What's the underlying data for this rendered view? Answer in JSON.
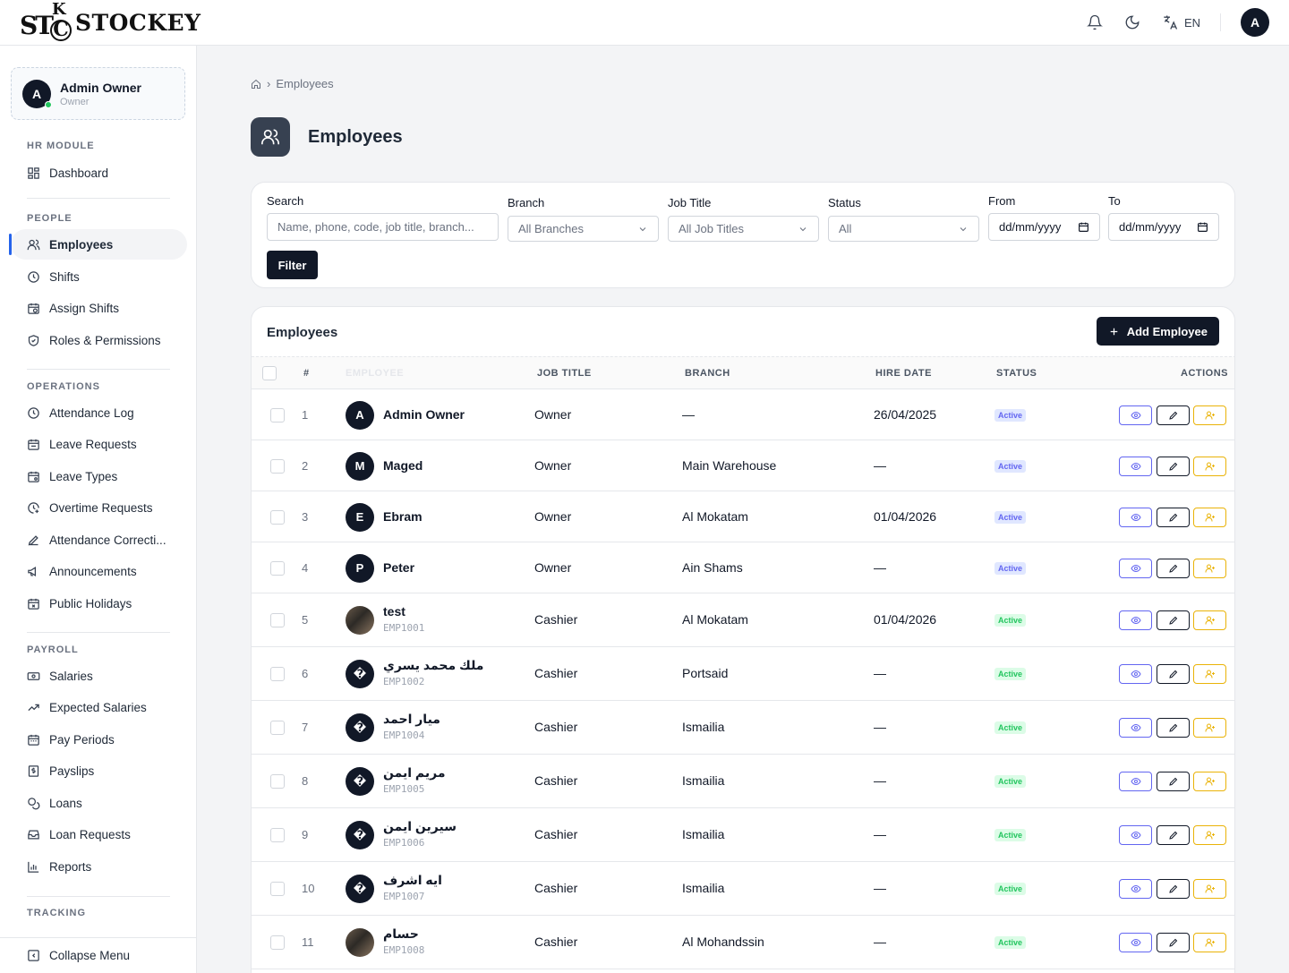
{
  "brand": {
    "logo_text": "STOCKEY",
    "mark_st": "ST",
    "mark_k": "K",
    "mark_c": "C"
  },
  "topbar": {
    "language": "EN",
    "user_initial": "A"
  },
  "profile": {
    "initial": "A",
    "name": "Admin Owner",
    "role": "Owner"
  },
  "sidebar": {
    "sections": {
      "hr": "HR MODULE",
      "people": "PEOPLE",
      "operations": "OPERATIONS",
      "payroll": "PAYROLL",
      "tracking": "TRACKING"
    },
    "items": {
      "dashboard": "Dashboard",
      "employees": "Employees",
      "shifts": "Shifts",
      "assign_shifts": "Assign Shifts",
      "roles": "Roles & Permissions",
      "attendance_log": "Attendance Log",
      "leave_requests": "Leave Requests",
      "leave_types": "Leave Types",
      "overtime": "Overtime Requests",
      "attendance_corrections": "Attendance Correcti...",
      "announcements": "Announcements",
      "public_holidays": "Public Holidays",
      "salaries": "Salaries",
      "expected_salaries": "Expected Salaries",
      "pay_periods": "Pay Periods",
      "payslips": "Payslips",
      "loans": "Loans",
      "loan_requests": "Loan Requests",
      "reports": "Reports"
    },
    "collapse": "Collapse Menu"
  },
  "breadcrumb": {
    "current": "Employees"
  },
  "page": {
    "title": "Employees"
  },
  "filters": {
    "search_label": "Search",
    "search_placeholder": "Name, phone, code, job title, branch...",
    "branch_label": "Branch",
    "branch_value": "All Branches",
    "job_label": "Job Title",
    "job_value": "All Job Titles",
    "status_label": "Status",
    "status_value": "All",
    "from_label": "From",
    "from_value": "dd/mm/yyyy",
    "to_label": "To",
    "to_value": "dd/mm/yyyy",
    "button": "Filter"
  },
  "table": {
    "title": "Employees",
    "add_button": "Add Employee",
    "columns": {
      "num": "#",
      "name": "EMPLOYEE",
      "job": "JOB TITLE",
      "branch": "BRANCH",
      "hire": "HIRE DATE",
      "status": "STATUS",
      "actions": "ACTIONS"
    },
    "rows": [
      {
        "num": "1",
        "initial": "A",
        "name": "Admin Owner",
        "code": "",
        "job": "Owner",
        "branch": "—",
        "hire": "26/04/2025",
        "status": "Active",
        "status_color": "blue"
      },
      {
        "num": "2",
        "initial": "M",
        "name": "Maged",
        "code": "",
        "job": "Owner",
        "branch": "Main Warehouse",
        "hire": "—",
        "status": "Active",
        "status_color": "blue"
      },
      {
        "num": "3",
        "initial": "E",
        "name": "Ebram",
        "code": "",
        "job": "Owner",
        "branch": "Al Mokatam",
        "hire": "01/04/2026",
        "status": "Active",
        "status_color": "blue"
      },
      {
        "num": "4",
        "initial": "P",
        "name": "Peter",
        "code": "",
        "job": "Owner",
        "branch": "Ain Shams",
        "hire": "—",
        "status": "Active",
        "status_color": "blue"
      },
      {
        "num": "5",
        "initial": "",
        "photo": true,
        "name": "test",
        "code": "EMP1001",
        "job": "Cashier",
        "branch": "Al Mokatam",
        "hire": "01/04/2026",
        "status": "Active",
        "status_color": "green"
      },
      {
        "num": "6",
        "initial": "�",
        "name": "ملك محمد يسري",
        "code": "EMP1002",
        "job": "Cashier",
        "branch": "Portsaid",
        "hire": "—",
        "status": "Active",
        "status_color": "green"
      },
      {
        "num": "7",
        "initial": "�",
        "name": "ميار احمد",
        "code": "EMP1004",
        "job": "Cashier",
        "branch": "Ismailia",
        "hire": "—",
        "status": "Active",
        "status_color": "green"
      },
      {
        "num": "8",
        "initial": "�",
        "name": "مريم ايمن",
        "code": "EMP1005",
        "job": "Cashier",
        "branch": "Ismailia",
        "hire": "—",
        "status": "Active",
        "status_color": "green"
      },
      {
        "num": "9",
        "initial": "�",
        "name": "سيرين ايمن",
        "code": "EMP1006",
        "job": "Cashier",
        "branch": "Ismailia",
        "hire": "—",
        "status": "Active",
        "status_color": "green"
      },
      {
        "num": "10",
        "initial": "�",
        "name": "ايه اشرف",
        "code": "EMP1007",
        "job": "Cashier",
        "branch": "Ismailia",
        "hire": "—",
        "status": "Active",
        "status_color": "green"
      },
      {
        "num": "11",
        "initial": "",
        "photo": true,
        "name": "حسام",
        "code": "EMP1008",
        "job": "Cashier",
        "branch": "Al Mohandssin",
        "hire": "—",
        "status": "Active",
        "status_color": "green"
      }
    ]
  }
}
